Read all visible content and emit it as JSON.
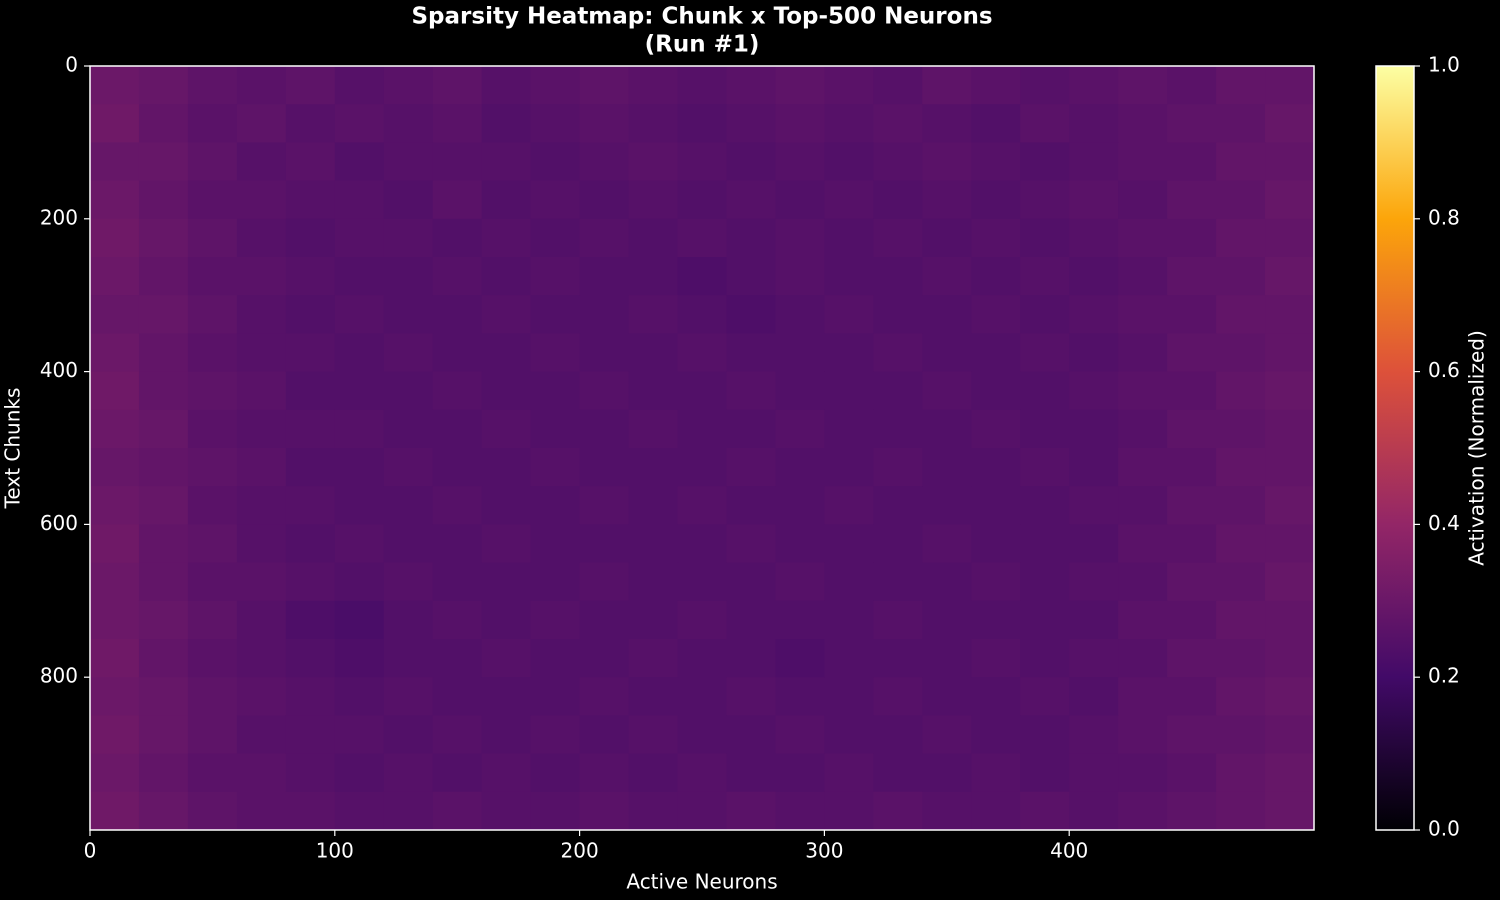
{
  "chart_data": {
    "type": "heatmap",
    "title": "Sparsity Heatmap: Chunk x Top-500 Neurons",
    "subtitle": "(Run #1)",
    "x_label": "Active Neurons",
    "y_label": "Text Chunks",
    "colorbar_label": "Activation (Normalized)",
    "xlim": [
      0,
      500
    ],
    "ylim": [
      1000,
      0
    ],
    "xticks": [
      0,
      100,
      200,
      300,
      400
    ],
    "yticks": [
      0,
      200,
      400,
      600,
      800
    ],
    "zlim": [
      0,
      1
    ],
    "zticks": [
      {
        "value": 0,
        "label": "0.0"
      },
      {
        "value": 0.2,
        "label": "0.2"
      },
      {
        "value": 0.4,
        "label": "0.4"
      },
      {
        "value": 0.6,
        "label": "0.6"
      },
      {
        "value": 0.8,
        "label": "0.8"
      },
      {
        "value": 1,
        "label": "1.0"
      }
    ],
    "colors": [
      "#000004",
      "#420a68",
      "#932667",
      "#dd513a",
      "#fca50a",
      "#fcffa4"
    ],
    "z": [
      [
        0.3,
        0.29,
        0.27,
        0.26,
        0.27,
        0.25,
        0.26,
        0.27,
        0.25,
        0.26,
        0.27,
        0.26,
        0.25,
        0.26,
        0.27,
        0.26,
        0.25,
        0.27,
        0.26,
        0.25,
        0.26,
        0.27,
        0.26,
        0.28,
        0.28
      ],
      [
        0.31,
        0.28,
        0.26,
        0.27,
        0.25,
        0.26,
        0.25,
        0.26,
        0.24,
        0.25,
        0.26,
        0.25,
        0.24,
        0.25,
        0.26,
        0.25,
        0.26,
        0.25,
        0.24,
        0.26,
        0.25,
        0.26,
        0.27,
        0.27,
        0.29
      ],
      [
        0.29,
        0.29,
        0.27,
        0.25,
        0.26,
        0.24,
        0.25,
        0.25,
        0.25,
        0.24,
        0.25,
        0.26,
        0.25,
        0.24,
        0.25,
        0.24,
        0.25,
        0.26,
        0.25,
        0.24,
        0.25,
        0.26,
        0.26,
        0.28,
        0.28
      ],
      [
        0.3,
        0.28,
        0.26,
        0.26,
        0.25,
        0.25,
        0.24,
        0.26,
        0.24,
        0.25,
        0.24,
        0.25,
        0.24,
        0.25,
        0.24,
        0.25,
        0.24,
        0.25,
        0.24,
        0.25,
        0.26,
        0.25,
        0.27,
        0.27,
        0.29
      ],
      [
        0.31,
        0.29,
        0.27,
        0.25,
        0.24,
        0.25,
        0.25,
        0.24,
        0.25,
        0.24,
        0.25,
        0.24,
        0.25,
        0.24,
        0.25,
        0.24,
        0.25,
        0.24,
        0.25,
        0.24,
        0.25,
        0.26,
        0.26,
        0.28,
        0.28
      ],
      [
        0.3,
        0.28,
        0.26,
        0.26,
        0.25,
        0.24,
        0.24,
        0.25,
        0.24,
        0.25,
        0.24,
        0.24,
        0.23,
        0.24,
        0.25,
        0.24,
        0.24,
        0.25,
        0.24,
        0.25,
        0.24,
        0.25,
        0.27,
        0.27,
        0.29
      ],
      [
        0.29,
        0.29,
        0.27,
        0.25,
        0.24,
        0.25,
        0.24,
        0.24,
        0.25,
        0.24,
        0.24,
        0.25,
        0.24,
        0.23,
        0.24,
        0.25,
        0.24,
        0.24,
        0.25,
        0.24,
        0.25,
        0.26,
        0.26,
        0.28,
        0.28
      ],
      [
        0.3,
        0.28,
        0.26,
        0.25,
        0.25,
        0.24,
        0.25,
        0.24,
        0.24,
        0.25,
        0.24,
        0.24,
        0.25,
        0.24,
        0.24,
        0.24,
        0.25,
        0.24,
        0.24,
        0.25,
        0.24,
        0.25,
        0.27,
        0.27,
        0.28
      ],
      [
        0.31,
        0.28,
        0.27,
        0.26,
        0.24,
        0.24,
        0.24,
        0.25,
        0.24,
        0.24,
        0.25,
        0.24,
        0.24,
        0.25,
        0.24,
        0.24,
        0.24,
        0.25,
        0.24,
        0.24,
        0.25,
        0.26,
        0.26,
        0.28,
        0.29
      ],
      [
        0.3,
        0.29,
        0.26,
        0.25,
        0.25,
        0.25,
        0.24,
        0.24,
        0.25,
        0.24,
        0.24,
        0.25,
        0.24,
        0.24,
        0.25,
        0.24,
        0.24,
        0.24,
        0.25,
        0.24,
        0.24,
        0.25,
        0.27,
        0.27,
        0.28
      ],
      [
        0.29,
        0.28,
        0.27,
        0.26,
        0.24,
        0.24,
        0.25,
        0.24,
        0.24,
        0.25,
        0.24,
        0.24,
        0.24,
        0.25,
        0.24,
        0.24,
        0.25,
        0.24,
        0.24,
        0.25,
        0.24,
        0.26,
        0.26,
        0.28,
        0.28
      ],
      [
        0.3,
        0.29,
        0.26,
        0.25,
        0.25,
        0.24,
        0.24,
        0.25,
        0.24,
        0.24,
        0.25,
        0.24,
        0.25,
        0.24,
        0.24,
        0.25,
        0.24,
        0.24,
        0.24,
        0.24,
        0.25,
        0.25,
        0.27,
        0.27,
        0.29
      ],
      [
        0.31,
        0.28,
        0.27,
        0.25,
        0.24,
        0.25,
        0.24,
        0.24,
        0.25,
        0.24,
        0.24,
        0.24,
        0.24,
        0.25,
        0.24,
        0.24,
        0.24,
        0.25,
        0.24,
        0.24,
        0.24,
        0.26,
        0.26,
        0.28,
        0.28
      ],
      [
        0.3,
        0.28,
        0.26,
        0.26,
        0.25,
        0.24,
        0.25,
        0.24,
        0.24,
        0.24,
        0.25,
        0.24,
        0.24,
        0.24,
        0.25,
        0.24,
        0.24,
        0.24,
        0.25,
        0.24,
        0.25,
        0.25,
        0.27,
        0.27,
        0.29
      ],
      [
        0.3,
        0.29,
        0.27,
        0.25,
        0.23,
        0.22,
        0.24,
        0.25,
        0.24,
        0.25,
        0.24,
        0.24,
        0.25,
        0.24,
        0.24,
        0.24,
        0.25,
        0.24,
        0.24,
        0.24,
        0.24,
        0.26,
        0.26,
        0.28,
        0.28
      ],
      [
        0.31,
        0.28,
        0.26,
        0.25,
        0.24,
        0.23,
        0.24,
        0.24,
        0.25,
        0.24,
        0.24,
        0.25,
        0.24,
        0.24,
        0.23,
        0.24,
        0.24,
        0.24,
        0.25,
        0.24,
        0.25,
        0.25,
        0.27,
        0.27,
        0.28
      ],
      [
        0.3,
        0.29,
        0.27,
        0.26,
        0.25,
        0.24,
        0.25,
        0.24,
        0.24,
        0.24,
        0.25,
        0.24,
        0.24,
        0.25,
        0.24,
        0.24,
        0.25,
        0.24,
        0.24,
        0.25,
        0.24,
        0.26,
        0.26,
        0.28,
        0.29
      ],
      [
        0.31,
        0.29,
        0.27,
        0.25,
        0.25,
        0.25,
        0.24,
        0.25,
        0.24,
        0.25,
        0.24,
        0.25,
        0.24,
        0.24,
        0.25,
        0.24,
        0.24,
        0.25,
        0.24,
        0.24,
        0.25,
        0.26,
        0.27,
        0.27,
        0.28
      ],
      [
        0.3,
        0.28,
        0.26,
        0.26,
        0.25,
        0.24,
        0.25,
        0.24,
        0.25,
        0.24,
        0.25,
        0.24,
        0.25,
        0.24,
        0.24,
        0.25,
        0.24,
        0.24,
        0.25,
        0.24,
        0.25,
        0.25,
        0.26,
        0.28,
        0.29
      ],
      [
        0.31,
        0.29,
        0.27,
        0.26,
        0.26,
        0.25,
        0.25,
        0.26,
        0.25,
        0.25,
        0.26,
        0.25,
        0.25,
        0.26,
        0.25,
        0.25,
        0.26,
        0.25,
        0.25,
        0.26,
        0.25,
        0.26,
        0.27,
        0.28,
        0.29
      ]
    ]
  }
}
